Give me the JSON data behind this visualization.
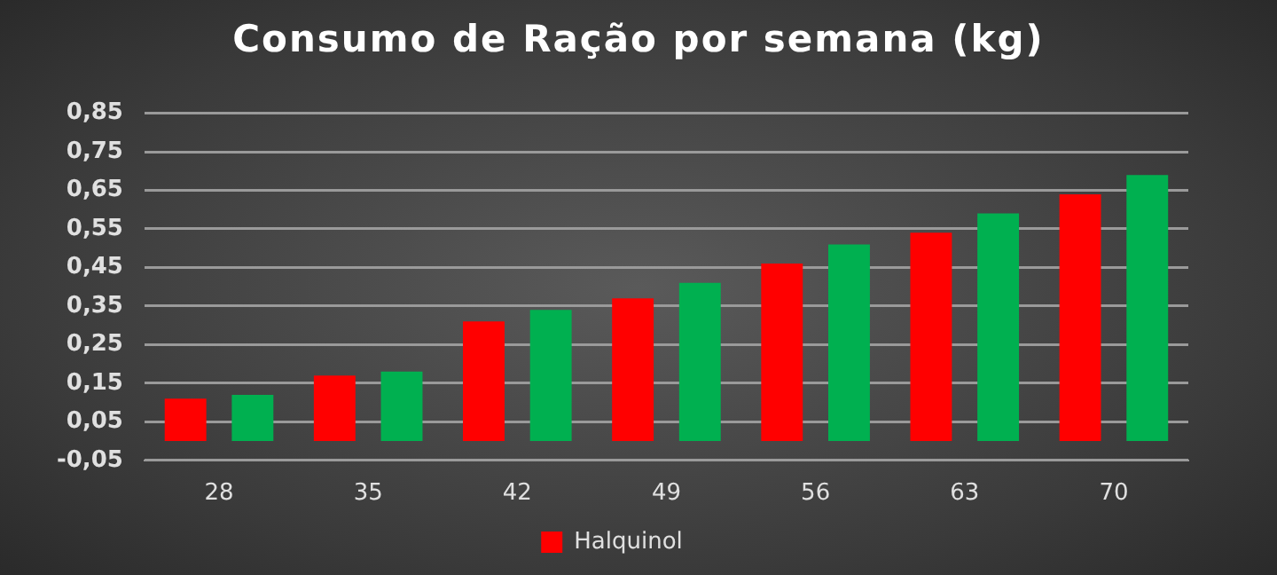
{
  "chart_data": {
    "type": "bar",
    "title": "Consumo de Ração por semana (kg)",
    "categories": [
      "28",
      "35",
      "42",
      "49",
      "56",
      "63",
      "70"
    ],
    "series": [
      {
        "name": "Halquinol",
        "color": "#ff0000",
        "values": [
          0.11,
          0.17,
          0.31,
          0.37,
          0.46,
          0.54,
          0.64
        ]
      },
      {
        "color": "#00b050",
        "values": [
          0.12,
          0.18,
          0.34,
          0.41,
          0.51,
          0.59,
          0.69
        ]
      }
    ],
    "ylim": [
      -0.05,
      0.85
    ],
    "yticks": [
      {
        "value": -0.05,
        "label": "-0,05"
      },
      {
        "value": 0.05,
        "label": "0,05"
      },
      {
        "value": 0.15,
        "label": "0,15"
      },
      {
        "value": 0.25,
        "label": "0,25"
      },
      {
        "value": 0.35,
        "label": "0,35"
      },
      {
        "value": 0.45,
        "label": "0,45"
      },
      {
        "value": 0.55,
        "label": "0,55"
      },
      {
        "value": 0.65,
        "label": "0,65"
      },
      {
        "value": 0.75,
        "label": "0,75"
      },
      {
        "value": 0.85,
        "label": "0,85"
      }
    ],
    "grid": "y",
    "legend": "bottom"
  }
}
